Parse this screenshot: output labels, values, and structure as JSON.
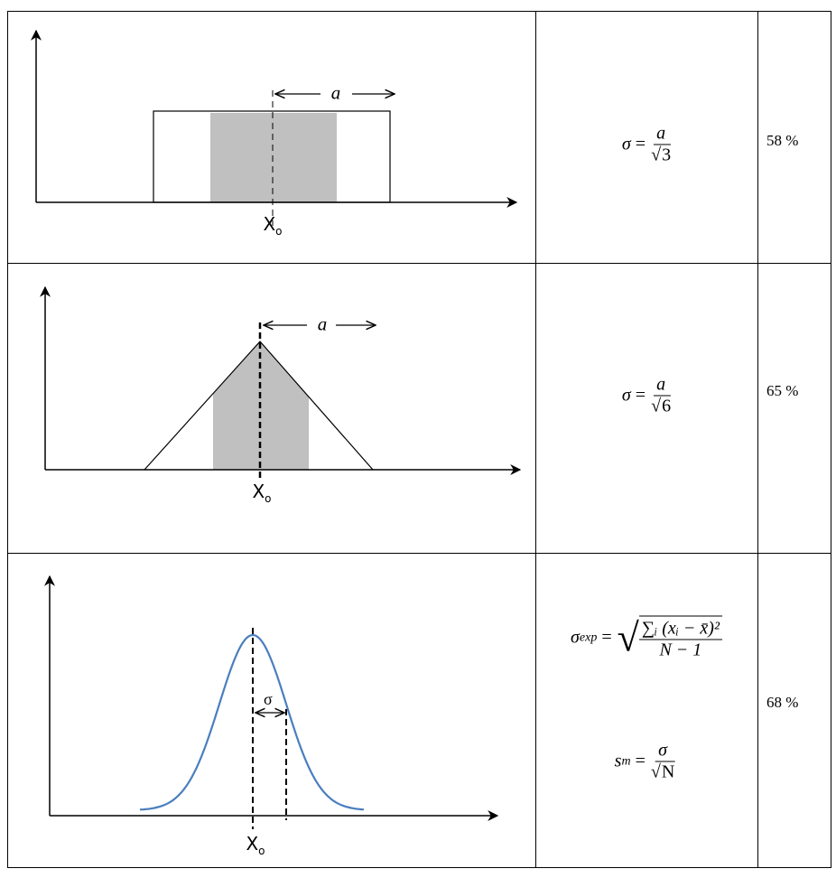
{
  "rows": [
    {
      "distribution": "rectangular",
      "x_label": "X",
      "x_sub": "o",
      "half_width_label": "a",
      "formula": {
        "lhs": "σ",
        "eq": "=",
        "num": "a",
        "den_root": "√",
        "den": "3"
      },
      "coverage": "58 %"
    },
    {
      "distribution": "triangular",
      "x_label": "X",
      "x_sub": "o",
      "half_width_label": "a",
      "formula": {
        "lhs": "σ",
        "eq": "=",
        "num": "a",
        "den_root": "√",
        "den": "6"
      },
      "coverage": "65 %"
    },
    {
      "distribution": "normal",
      "x_label": "X",
      "x_sub": "o",
      "width_label": "σ",
      "formula1": {
        "lhs": "σ",
        "lhs_sub": "exp",
        "eq": "=",
        "root": "√",
        "num": "∑ᵢ (xᵢ − x̄)²",
        "den": "N − 1"
      },
      "formula2": {
        "lhs": "s",
        "lhs_sub": "m",
        "eq": "=",
        "num": "σ",
        "den_root": "√",
        "den": "N"
      },
      "coverage": "68 %"
    }
  ],
  "colors": {
    "shade": "#c0c0c0",
    "curve": "#4a7ebf",
    "line": "#000000"
  }
}
